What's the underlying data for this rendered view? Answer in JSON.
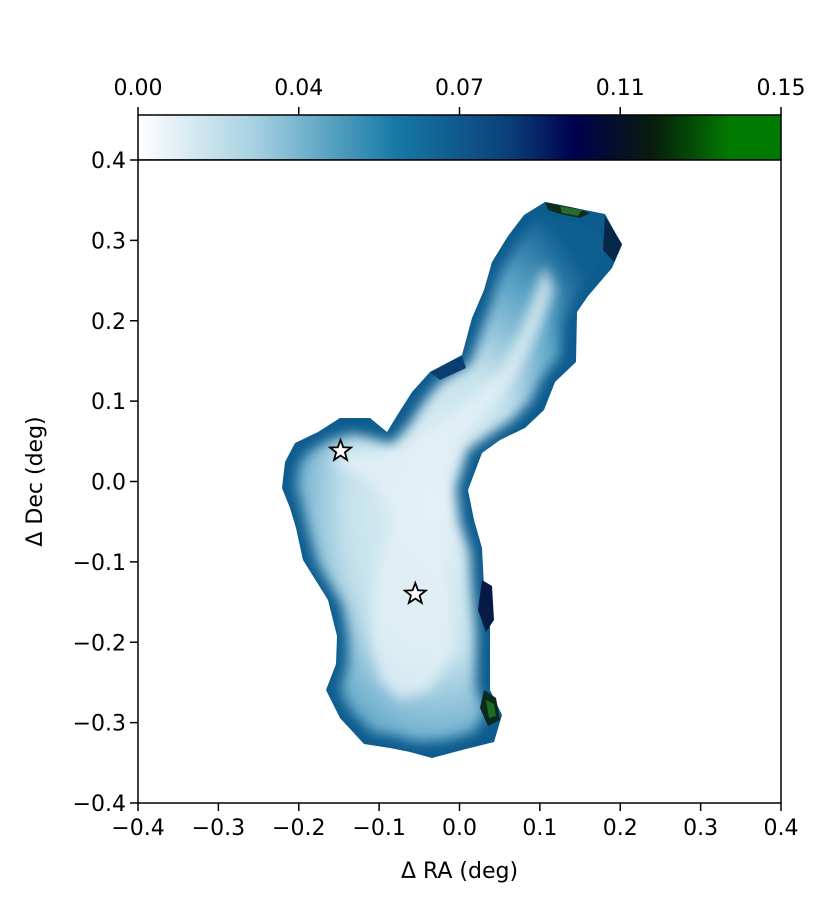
{
  "chart_data": {
    "type": "heatmap",
    "xlabel": "Δ RA (deg)",
    "ylabel": "Δ Dec (deg)",
    "xlim": [
      -0.4,
      0.4
    ],
    "ylim": [
      -0.4,
      0.4
    ],
    "x_ticks": [
      "−0.4",
      "−0.3",
      "−0.2",
      "−0.1",
      "0.0",
      "0.1",
      "0.2",
      "0.3",
      "0.4"
    ],
    "y_ticks": [
      "−0.4",
      "−0.3",
      "−0.2",
      "−0.1",
      "0.0",
      "0.1",
      "0.2",
      "0.3",
      "0.4"
    ],
    "colorbar": {
      "ticks": [
        "0.00",
        "0.04",
        "0.07",
        "0.11",
        "0.15"
      ],
      "range": [
        0.0,
        0.15
      ],
      "placement": "top",
      "colors": [
        "#ffffff",
        "#a7d1e2",
        "#167aa6",
        "#0b3e78",
        "#00004e",
        "#081c0d",
        "#007a00"
      ]
    },
    "markers": [
      {
        "symbol": "star",
        "x": -0.148,
        "y": 0.038
      },
      {
        "symbol": "star",
        "x": -0.055,
        "y": -0.14
      }
    ],
    "grid": false
  }
}
